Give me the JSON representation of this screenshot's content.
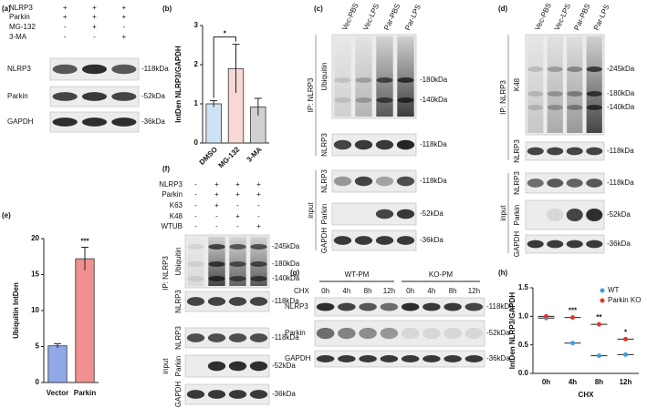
{
  "figure": {
    "a": {
      "label": "(a)",
      "conditions": [
        {
          "name": "NLRP3",
          "signs": [
            "+",
            "+",
            "+"
          ]
        },
        {
          "name": "Parkin",
          "signs": [
            "+",
            "+",
            "+"
          ]
        },
        {
          "name": "MG-132",
          "signs": [
            "-",
            "+",
            "-"
          ]
        },
        {
          "name": "3-MA",
          "signs": [
            "-",
            "-",
            "+"
          ]
        }
      ],
      "blots": [
        {
          "name": "NLRP3",
          "sizes": [
            "-118kDa"
          ]
        },
        {
          "name": "Parkin",
          "sizes": [
            "-52kDa"
          ]
        },
        {
          "name": "GAPDH",
          "sizes": [
            "-36kDa"
          ]
        }
      ]
    },
    "c": {
      "label": "(c)",
      "lanes": [
        "Vec-PBS",
        "Vec-LPS",
        "Par-PBS",
        "Par-LPS"
      ],
      "ip": {
        "label": "IP: NLRP3",
        "blots": [
          {
            "name": "Ubiquitin",
            "sizes": [
              "-180kDa",
              "-140kDa"
            ]
          },
          {
            "name": "NLRP3",
            "sizes": [
              "-118kDa"
            ]
          }
        ]
      },
      "input": {
        "label": "input",
        "blots": [
          {
            "name": "NLRP3",
            "sizes": [
              "-118kDa"
            ]
          },
          {
            "name": "Parkin",
            "sizes": [
              "-52kDa"
            ]
          },
          {
            "name": "GAPDH",
            "sizes": [
              "-36kDa"
            ]
          }
        ]
      }
    },
    "d": {
      "label": "(d)",
      "lanes": [
        "Vec-PBS",
        "Vec-LPS",
        "Par-PBS",
        "Par-LPS"
      ],
      "ip": {
        "label": "IP: NLRP3",
        "blots": [
          {
            "name": "K48",
            "sizes": [
              "-245kDa",
              "-180kDa",
              "-140kDa"
            ]
          },
          {
            "name": "NLRP3",
            "sizes": [
              "-118kDa"
            ]
          }
        ]
      },
      "input": {
        "label": "input",
        "blots": [
          {
            "name": "NLRP3",
            "sizes": [
              "-118kDa"
            ]
          },
          {
            "name": "Parkin",
            "sizes": [
              "-52kDa"
            ]
          },
          {
            "name": "GAPDH",
            "sizes": [
              "-36kDa"
            ]
          }
        ]
      }
    },
    "f": {
      "label": "(f)",
      "conditions": [
        {
          "name": "NLRP3",
          "signs": [
            "-",
            "+",
            "+",
            "+"
          ]
        },
        {
          "name": "Parkin",
          "signs": [
            "-",
            "+",
            "+",
            "+"
          ]
        },
        {
          "name": "K63",
          "signs": [
            "-",
            "+",
            "-",
            "-"
          ]
        },
        {
          "name": "K48",
          "signs": [
            "-",
            "-",
            "+",
            "-"
          ]
        },
        {
          "name": "WTUB",
          "signs": [
            "-",
            "-",
            "-",
            "+"
          ]
        }
      ],
      "ip": {
        "label": "IP: NLRP3",
        "blots": [
          {
            "name": "Ubiquitin",
            "sizes": [
              "-245kDa",
              "-180kDa",
              "-140kDa"
            ]
          },
          {
            "name": "NLRP3",
            "sizes": [
              "-118kDa"
            ]
          }
        ]
      },
      "input": {
        "label": "input",
        "blots": [
          {
            "name": "NLRP3",
            "sizes": [
              "-118kDa"
            ]
          },
          {
            "name": "Parkin",
            "sizes": [
              "-52kDa"
            ]
          },
          {
            "name": "GAPDH",
            "sizes": [
              "-36kDa"
            ]
          }
        ]
      }
    },
    "g": {
      "label": "(g)",
      "groups": [
        "WT-PM",
        "KO-PM"
      ],
      "treatment": "CHX",
      "times": [
        "0h",
        "4h",
        "8h",
        "12h",
        "0h",
        "4h",
        "8h",
        "12h"
      ],
      "blots": [
        {
          "name": "NLRP3",
          "sizes": [
            "-118kDa"
          ]
        },
        {
          "name": "Parkin",
          "sizes": [
            "-52kDa"
          ]
        },
        {
          "name": "GAPDH",
          "sizes": [
            "-36kDa"
          ]
        }
      ]
    }
  },
  "chart_data": [
    {
      "type": "bar",
      "label": "(b)",
      "ylabel": "IntDen NLRP3/GAPDH",
      "categories": [
        "DMSO",
        "MG-132",
        "3-MA"
      ],
      "values": [
        1.0,
        1.9,
        0.92
      ],
      "errors": [
        0.08,
        0.62,
        0.22
      ],
      "colors": [
        "#cfe2f3",
        "#f8d7d7",
        "#d0d0d0"
      ],
      "ylim": [
        0,
        3
      ],
      "yticks": [
        0,
        1,
        2,
        3
      ],
      "significance": "*"
    },
    {
      "type": "bar",
      "label": "(e)",
      "ylabel": "Ubiquitin IntDen",
      "categories": [
        "Vector",
        "Parkin"
      ],
      "values": [
        5.1,
        17.2
      ],
      "errors": [
        0.3,
        1.6
      ],
      "colors": [
        "#8fa9e6",
        "#f09090"
      ],
      "ylim": [
        0,
        20
      ],
      "yticks": [
        0,
        5,
        10,
        15,
        20
      ],
      "significance": "***"
    },
    {
      "type": "dot",
      "label": "(h)",
      "ylabel": "IntDen NLRP3/GAPDH",
      "xlabel": "CHX",
      "categories": [
        "0h",
        "4h",
        "8h",
        "12h"
      ],
      "series": [
        {
          "name": "WT",
          "color": "#3b9de0",
          "values": [
            0.97,
            0.53,
            0.31,
            0.33
          ]
        },
        {
          "name": "Parkin KO",
          "color": "#e8342a",
          "values": [
            1.0,
            0.98,
            0.86,
            0.6
          ]
        }
      ],
      "ylim": [
        0,
        1.5
      ],
      "yticks": [
        {
          "value": 0,
          "label": "0.0"
        },
        0.5,
        {
          "value": 1,
          "label": "1.0"
        },
        1.5
      ],
      "significance": [
        null,
        "***",
        "**",
        "*"
      ]
    }
  ]
}
